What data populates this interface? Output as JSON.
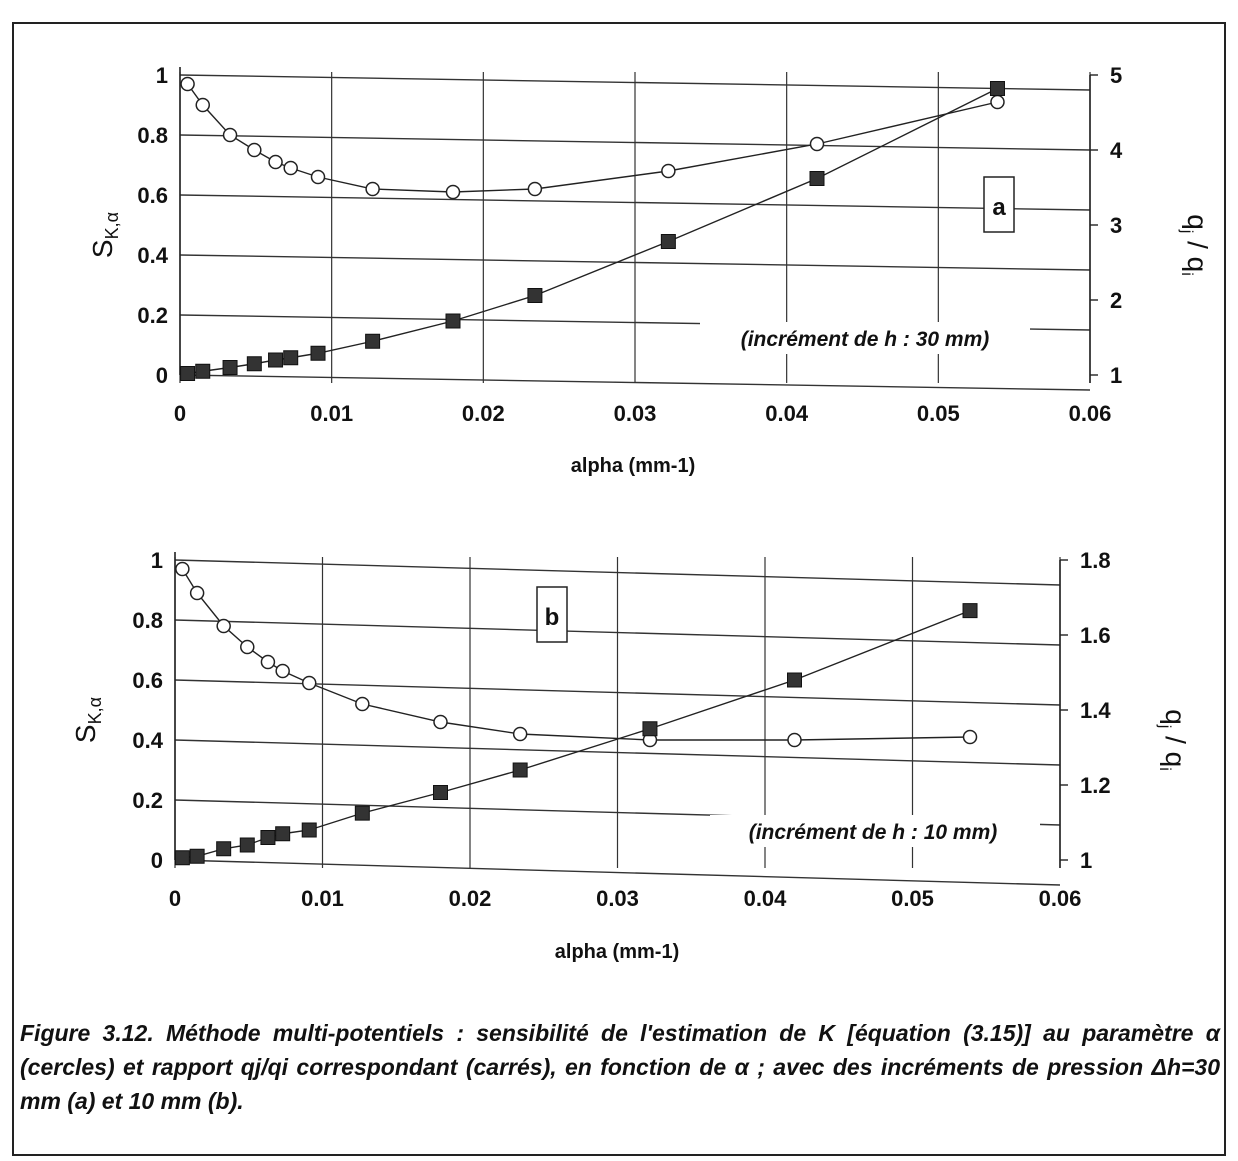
{
  "caption": {
    "line1": "Figure 3.12. Méthode multi-potentiels : sensibilité de l'estimation de K [équation",
    "line2": "(3.15)] au paramètre α (cercles) et rapport qj/qi correspondant (carrés), en fonction",
    "line3": "de α ; avec des incréments de pression Δh=30 mm (a) et 10 mm (b)."
  },
  "chart_data": [
    {
      "type": "line",
      "panel_label": "a",
      "annotation": "(incrément de h : 30 mm)",
      "xlabel": "alpha (mm-1)",
      "ylabel": "SK,α",
      "y2label": "qj / qi",
      "xlim": [
        0,
        0.06
      ],
      "ylim": [
        0,
        1
      ],
      "y2lim": [
        1,
        5
      ],
      "x_ticks": [
        "0",
        "0.01",
        "0.02",
        "0.03",
        "0.04",
        "0.05",
        "0.06"
      ],
      "y_ticks": [
        "0",
        "0.2",
        "0.4",
        "0.6",
        "0.8",
        "1"
      ],
      "y2_ticks": [
        "1",
        "2",
        "3",
        "4",
        "5"
      ],
      "grid": true,
      "series": [
        {
          "axis": "left",
          "marker": "circle",
          "x": [
            0.0005,
            0.0015,
            0.0033,
            0.0049,
            0.0063,
            0.0073,
            0.0091,
            0.0127,
            0.018,
            0.0234,
            0.0322,
            0.042,
            0.0539
          ],
          "y": [
            0.97,
            0.9,
            0.8,
            0.75,
            0.71,
            0.69,
            0.66,
            0.62,
            0.61,
            0.62,
            0.68,
            0.77,
            0.91
          ]
        },
        {
          "axis": "right",
          "marker": "square",
          "x": [
            0.0005,
            0.0015,
            0.0033,
            0.0049,
            0.0063,
            0.0073,
            0.0091,
            0.0127,
            0.018,
            0.0234,
            0.0322,
            0.042,
            0.0539
          ],
          "y": [
            1.02,
            1.05,
            1.1,
            1.15,
            1.2,
            1.23,
            1.29,
            1.45,
            1.72,
            2.06,
            2.78,
            3.62,
            4.82
          ]
        }
      ]
    },
    {
      "type": "line",
      "panel_label": "b",
      "annotation": "(incrément de h : 10 mm)",
      "xlabel": "alpha (mm-1)",
      "ylabel": "SK,α",
      "y2label": "qj / qi",
      "xlim": [
        0,
        0.06
      ],
      "ylim": [
        0,
        1
      ],
      "y2lim": [
        1,
        1.8
      ],
      "x_ticks": [
        "0",
        "0.01",
        "0.02",
        "0.03",
        "0.04",
        "0.05",
        "0.06"
      ],
      "y_ticks": [
        "0",
        "0.2",
        "0.4",
        "0.6",
        "0.8",
        "1"
      ],
      "y2_ticks": [
        "1",
        "1.2",
        "1.4",
        "1.6",
        "1.8"
      ],
      "grid": true,
      "series": [
        {
          "axis": "left",
          "marker": "circle",
          "x": [
            0.0005,
            0.0015,
            0.0033,
            0.0049,
            0.0063,
            0.0073,
            0.0091,
            0.0127,
            0.018,
            0.0234,
            0.0322,
            0.042,
            0.0539
          ],
          "y": [
            0.97,
            0.89,
            0.78,
            0.71,
            0.66,
            0.63,
            0.59,
            0.52,
            0.46,
            0.42,
            0.4,
            0.4,
            0.41
          ]
        },
        {
          "axis": "right",
          "marker": "square",
          "x": [
            0.0005,
            0.0015,
            0.0033,
            0.0049,
            0.0063,
            0.0073,
            0.0091,
            0.0127,
            0.018,
            0.0234,
            0.0322,
            0.042,
            0.0539
          ],
          "y": [
            1.006,
            1.01,
            1.03,
            1.04,
            1.06,
            1.07,
            1.08,
            1.125,
            1.18,
            1.24,
            1.35,
            1.48,
            1.665
          ]
        }
      ]
    }
  ]
}
